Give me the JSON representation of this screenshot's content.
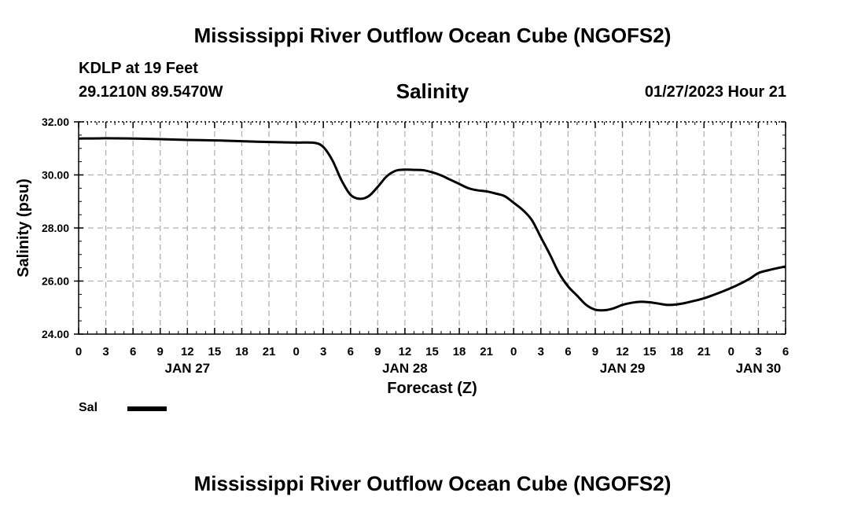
{
  "header": {
    "title": "Mississippi River Outflow Ocean Cube (NGOFS2)",
    "station": "KDLP at 19 Feet",
    "coords": "29.1210N  89.5470W",
    "timestamp": "01/27/2023 Hour 21"
  },
  "legend": {
    "label": "Sal"
  },
  "footer": {
    "title": "Mississippi River Outflow Ocean Cube (NGOFS2)"
  },
  "colors": {
    "line": "#000000",
    "grid": "#b0b0b0"
  },
  "chart_data": {
    "type": "line",
    "title": "Salinity",
    "xlabel": "Forecast (Z)",
    "ylabel": "Salinity (psu)",
    "xlim": [
      0,
      78
    ],
    "ylim": [
      24,
      32
    ],
    "yticks": [
      24,
      26,
      28,
      30,
      32
    ],
    "ytick_labels": [
      "24.00",
      "26.00",
      "28.00",
      "30.00",
      "32.00"
    ],
    "xticks": [
      0,
      3,
      6,
      9,
      12,
      15,
      18,
      21,
      24,
      27,
      30,
      33,
      36,
      39,
      42,
      45,
      48,
      51,
      54,
      57,
      60,
      63,
      66,
      69,
      72,
      75,
      78
    ],
    "xtick_labels": [
      "0",
      "3",
      "6",
      "9",
      "12",
      "15",
      "18",
      "21",
      "0",
      "3",
      "6",
      "9",
      "12",
      "15",
      "18",
      "21",
      "0",
      "3",
      "6",
      "9",
      "12",
      "15",
      "18",
      "21",
      "0",
      "3",
      "6"
    ],
    "date_labels": [
      {
        "x": 12,
        "label": "JAN 27"
      },
      {
        "x": 36,
        "label": "JAN 28"
      },
      {
        "x": 60,
        "label": "JAN 29"
      },
      {
        "x": 75,
        "label": "JAN 30"
      }
    ],
    "grid": true,
    "series": [
      {
        "name": "Sal",
        "x": [
          0,
          3,
          6,
          9,
          12,
          15,
          18,
          21,
          24,
          26,
          27,
          28,
          29,
          30,
          31,
          32,
          33,
          34,
          35,
          36,
          37,
          38,
          39,
          40,
          41,
          42,
          43,
          44,
          45,
          46,
          47,
          48,
          49,
          50,
          51,
          52,
          53,
          54,
          55,
          56,
          57,
          58,
          59,
          60,
          61,
          62,
          63,
          64,
          65,
          66,
          67,
          68,
          69,
          70,
          71,
          72,
          73,
          74,
          75,
          76,
          77,
          78
        ],
        "values": [
          31.37,
          31.38,
          31.37,
          31.35,
          31.32,
          31.3,
          31.27,
          31.24,
          31.22,
          31.21,
          31.05,
          30.55,
          29.8,
          29.25,
          29.1,
          29.2,
          29.55,
          29.95,
          30.16,
          30.2,
          30.19,
          30.18,
          30.1,
          29.98,
          29.82,
          29.66,
          29.5,
          29.42,
          29.38,
          29.3,
          29.2,
          28.95,
          28.68,
          28.3,
          27.65,
          27.0,
          26.3,
          25.8,
          25.45,
          25.1,
          24.92,
          24.9,
          24.97,
          25.1,
          25.18,
          25.22,
          25.2,
          25.15,
          25.1,
          25.12,
          25.18,
          25.26,
          25.35,
          25.47,
          25.6,
          25.74,
          25.9,
          26.08,
          26.3,
          26.4,
          26.48,
          26.55
        ]
      }
    ]
  }
}
